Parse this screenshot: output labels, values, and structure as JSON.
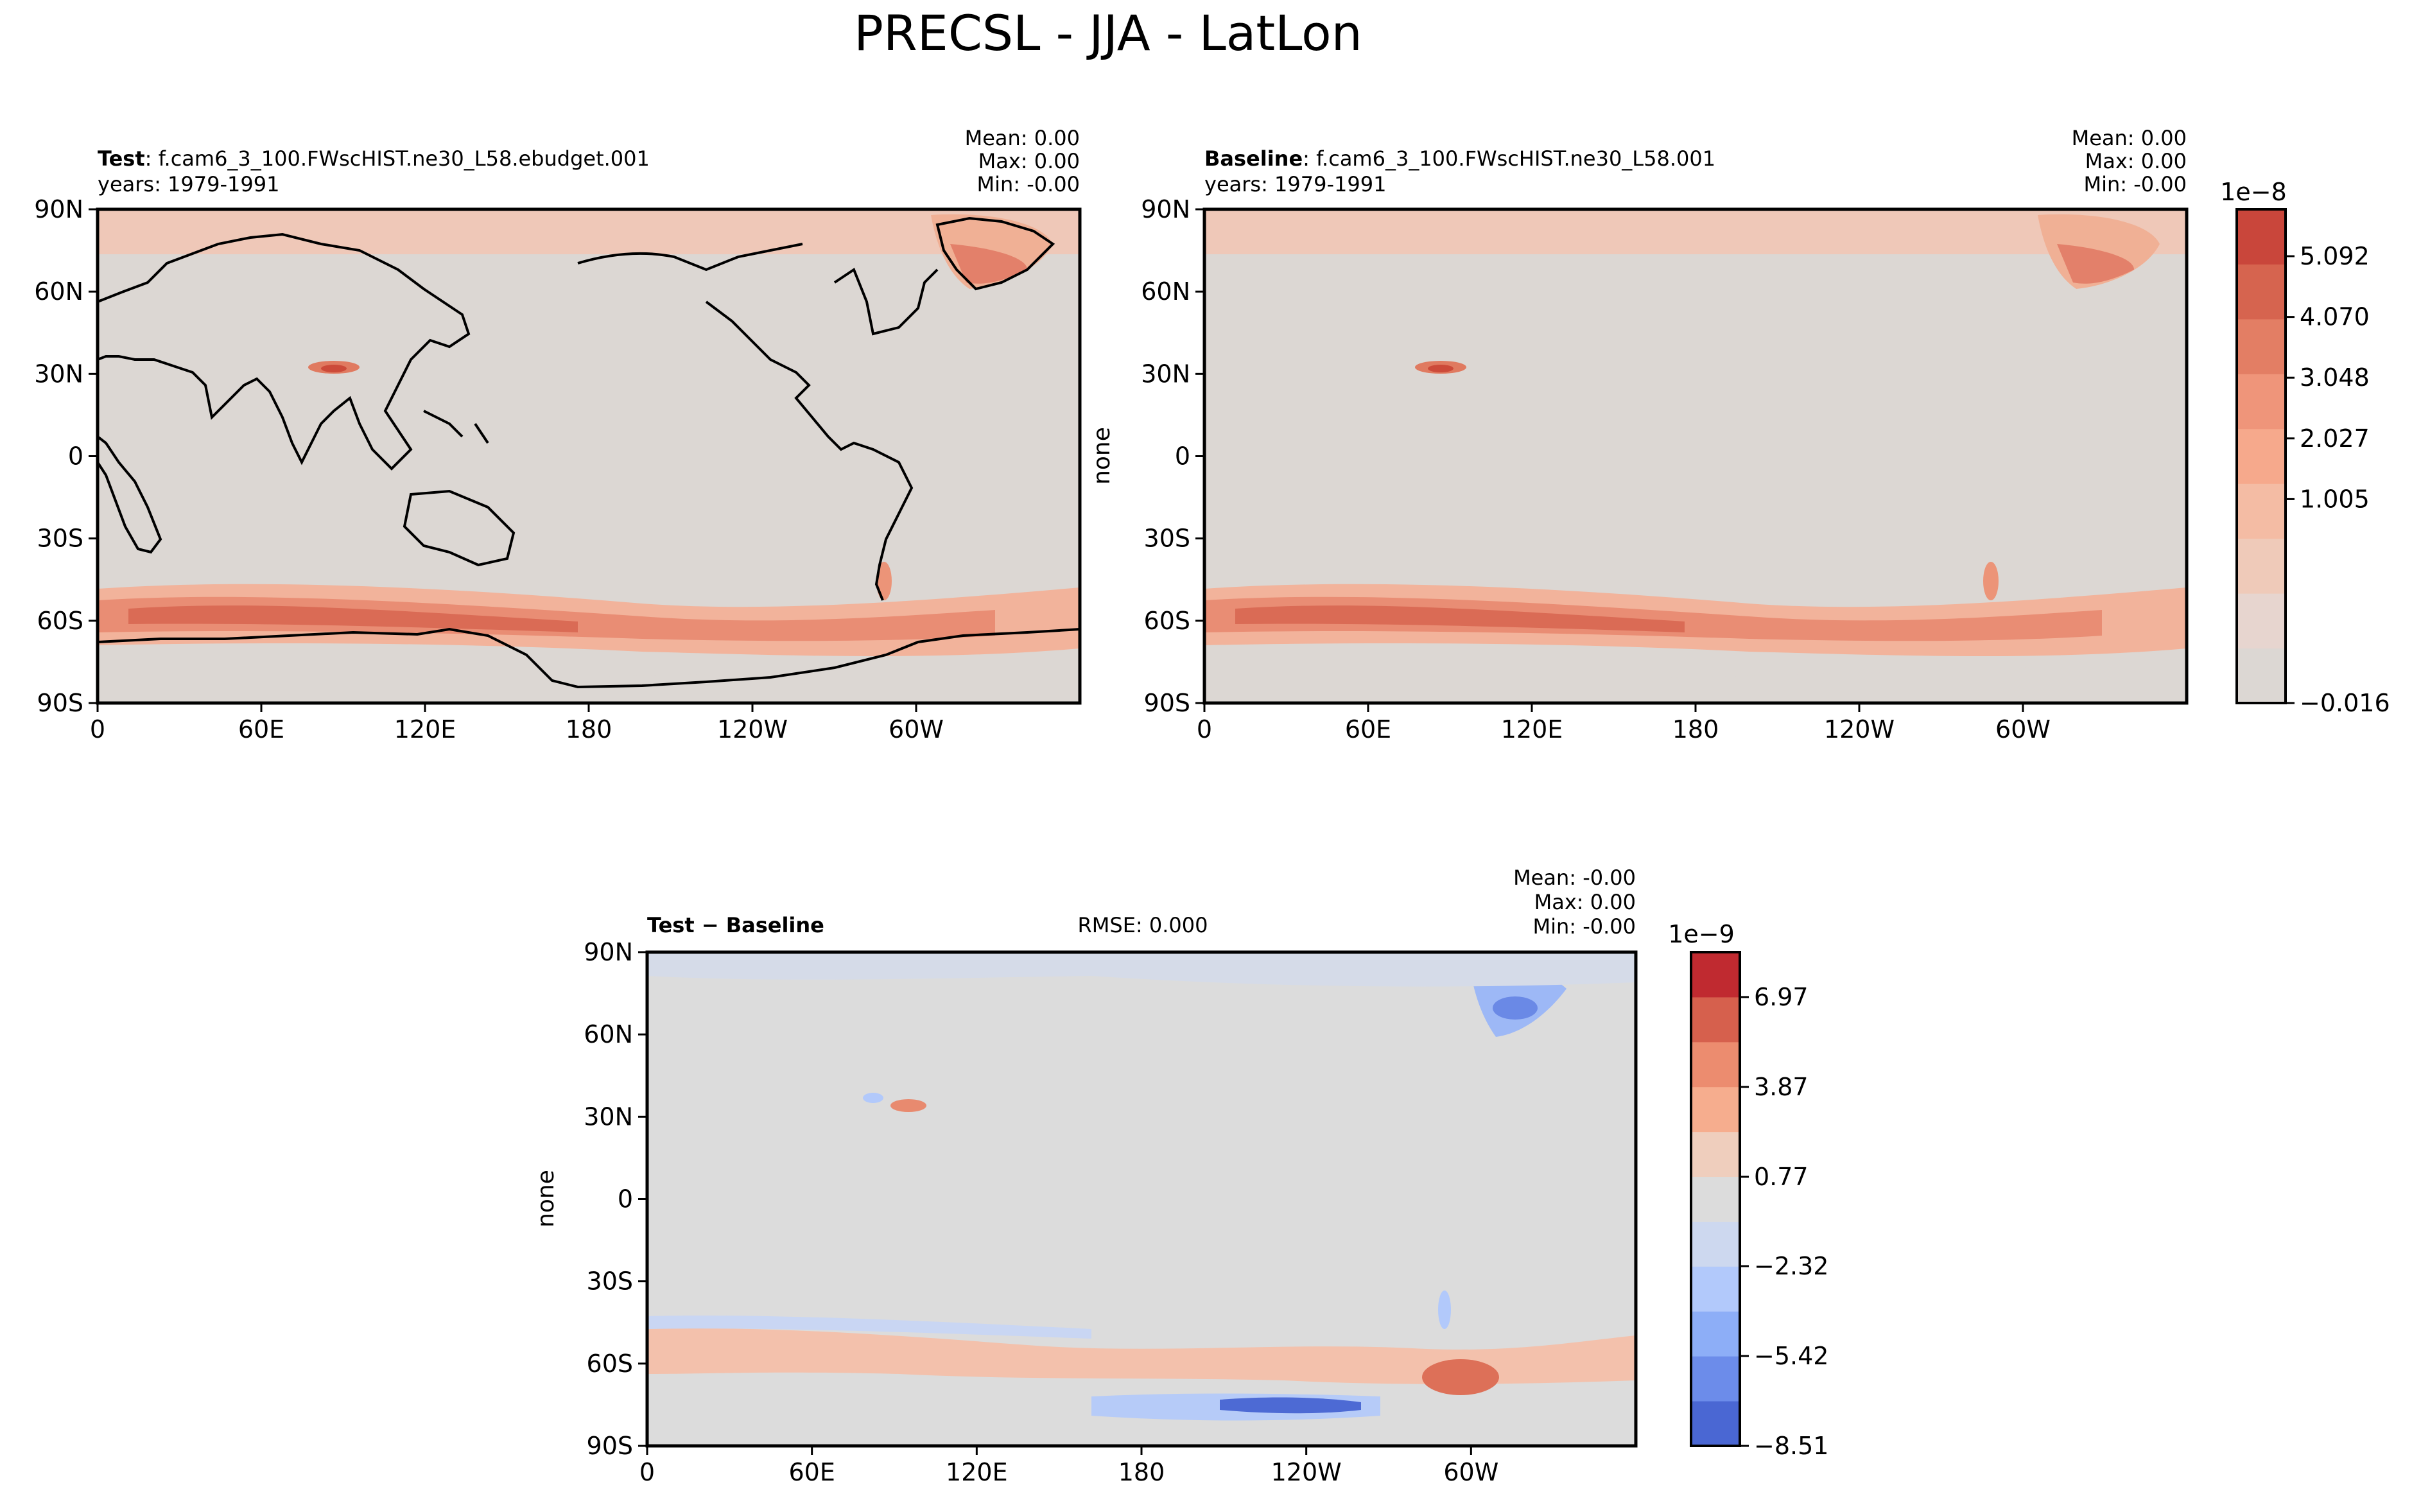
{
  "figure": {
    "title": "PRECSL - JJA - LatLon"
  },
  "colors": {
    "ocean": "#dcdcdc",
    "coast": "#000000",
    "warm": [
      "#e7d5cf",
      "#efcab9",
      "#f4bca4",
      "#f6a98c",
      "#ef957a",
      "#e37e64",
      "#d6644f",
      "#c9463b",
      "#b81f2c"
    ],
    "diffWarm": [
      "#efcebd",
      "#f6ad8e",
      "#ec8c6f",
      "#d6604d",
      "#c02a30"
    ],
    "diffCool": [
      "#4a67d3",
      "#6c8cea",
      "#8daef7",
      "#b2c9fb",
      "#cdd8ef"
    ]
  },
  "chart_data": [
    {
      "type": "heatmap",
      "panel": "test",
      "label_bold": "Test",
      "label_rest": ": f.cam6_3_100.FWscHIST.ne30_L58.ebudget.001",
      "years": "years: 1979-1991",
      "stats": [
        "Mean:  0.00",
        "Max:  0.00",
        "Min: -0.00"
      ],
      "ylabel": "",
      "xticks": [
        "0",
        "60E",
        "120E",
        "180",
        "120W",
        "60W"
      ],
      "yticks": [
        "90N",
        "60N",
        "30N",
        "0",
        "30S",
        "60S",
        "90S"
      ],
      "xlim": [
        0,
        360
      ],
      "ylim": [
        -90,
        90
      ],
      "features": [
        {
          "name": "southern-ocean-band",
          "lat": -58,
          "lon_range": [
            0,
            360
          ],
          "level": 5
        },
        {
          "name": "tibet",
          "lat": 30,
          "lon": 88,
          "level": 5
        },
        {
          "name": "greenland",
          "lat": 70,
          "lon": 318,
          "level": 4
        },
        {
          "name": "arctic-band",
          "lat": 82,
          "lon_range": [
            0,
            360
          ],
          "level": 1
        },
        {
          "name": "patagonia",
          "lat": -48,
          "lon": 287,
          "level": 5
        }
      ]
    },
    {
      "type": "heatmap",
      "panel": "baseline",
      "label_bold": "Baseline",
      "label_rest": ": f.cam6_3_100.FWscHIST.ne30_L58.001",
      "years": "years: 1979-1991",
      "stats": [
        "Mean:  0.00",
        "Max:  0.00",
        "Min: -0.00"
      ],
      "ylabel": "none",
      "xticks": [
        "0",
        "60E",
        "120E",
        "180",
        "120W",
        "60W"
      ],
      "yticks": [
        "90N",
        "60N",
        "30N",
        "0",
        "30S",
        "60S",
        "90S"
      ],
      "xlim": [
        0,
        360
      ],
      "ylim": [
        -90,
        90
      ],
      "colorbar": {
        "exponent": "1e−8",
        "ticks": [
          "5.092",
          "4.070",
          "3.048",
          "2.027",
          "1.005",
          "−0.016"
        ],
        "levels": 9
      }
    },
    {
      "type": "heatmap",
      "panel": "difference",
      "label_bold": "Test − Baseline",
      "rmse": "RMSE: 0.000",
      "stats": [
        "Mean: -0.00",
        "Max:  0.00",
        "Min: -0.00"
      ],
      "ylabel": "none",
      "xticks": [
        "0",
        "60E",
        "120E",
        "180",
        "120W",
        "60W"
      ],
      "yticks": [
        "90N",
        "60N",
        "30N",
        "0",
        "30S",
        "60S",
        "90S"
      ],
      "xlim": [
        0,
        360
      ],
      "ylim": [
        -90,
        90
      ],
      "colorbar": {
        "exponent": "1e−9",
        "ticks": [
          "6.97",
          "3.87",
          "0.77",
          "−2.32",
          "−5.42",
          "−8.51"
        ],
        "levels": 11
      }
    }
  ]
}
